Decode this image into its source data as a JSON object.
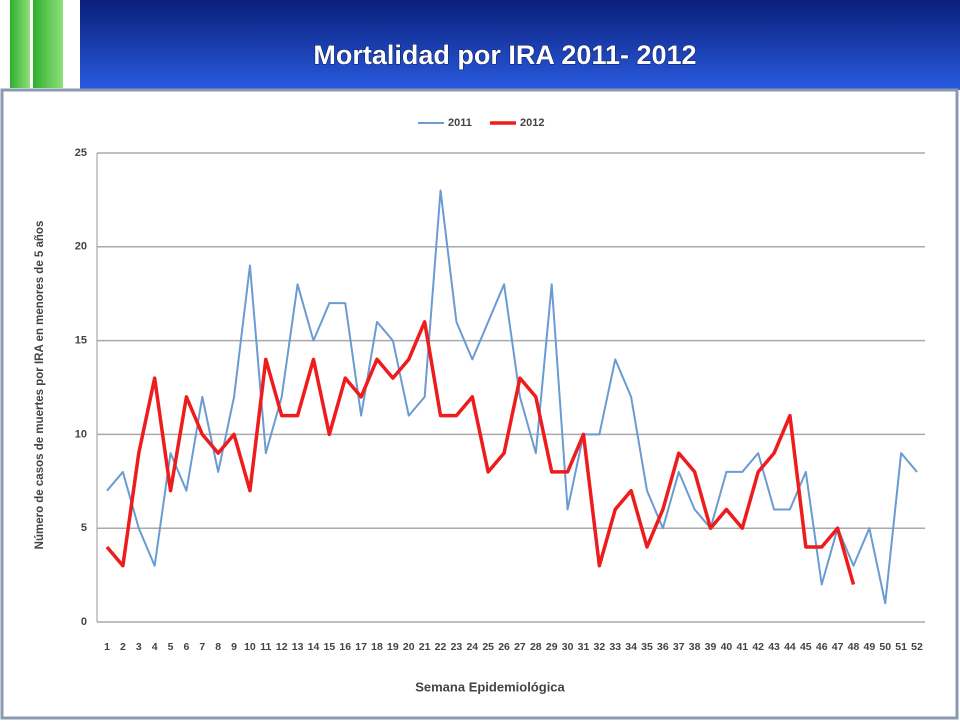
{
  "chart_data": {
    "type": "line",
    "title": "Mortalidad por IRA 2011- 2012",
    "x_label": "Semana Epidemiológica",
    "y_label": "Número de casos de muertes por IRA en menores de 5 años",
    "categories": [
      "1",
      "2",
      "3",
      "4",
      "5",
      "6",
      "7",
      "8",
      "9",
      "10",
      "11",
      "12",
      "13",
      "14",
      "15",
      "16",
      "17",
      "18",
      "19",
      "20",
      "21",
      "22",
      "23",
      "24",
      "25",
      "26",
      "27",
      "28",
      "29",
      "30",
      "31",
      "32",
      "33",
      "34",
      "35",
      "36",
      "37",
      "38",
      "39",
      "40",
      "41",
      "42",
      "43",
      "44",
      "45",
      "46",
      "47",
      "48",
      "49",
      "50",
      "51",
      "52"
    ],
    "series": [
      {
        "name": "2011",
        "color": "#6a9bd2",
        "width": 2,
        "values": [
          7,
          8,
          5,
          3,
          9,
          7,
          12,
          8,
          12,
          19,
          9,
          12,
          18,
          15,
          17,
          17,
          11,
          16,
          15,
          11,
          12,
          23,
          16,
          14,
          16,
          18,
          12,
          9,
          18,
          6,
          10,
          10,
          14,
          12,
          7,
          5,
          8,
          6,
          5,
          8,
          8,
          9,
          6,
          6,
          8,
          2,
          5,
          3,
          5,
          1,
          9,
          8
        ]
      },
      {
        "name": "2012",
        "color": "#ee1c1c",
        "width": 3.5,
        "values": [
          4,
          3,
          9,
          13,
          7,
          12,
          10,
          9,
          10,
          7,
          14,
          11,
          11,
          14,
          10,
          13,
          12,
          14,
          13,
          14,
          16,
          11,
          11,
          12,
          8,
          9,
          13,
          12,
          8,
          8,
          10,
          3,
          6,
          7,
          4,
          6,
          9,
          8,
          5,
          6,
          5,
          8,
          9,
          11,
          4,
          4,
          5,
          2,
          null,
          null,
          null,
          null
        ]
      }
    ],
    "ylim": [
      0,
      25
    ],
    "yticks": [
      0,
      5,
      10,
      15,
      20,
      25
    ],
    "grid": true,
    "legend": "top"
  }
}
